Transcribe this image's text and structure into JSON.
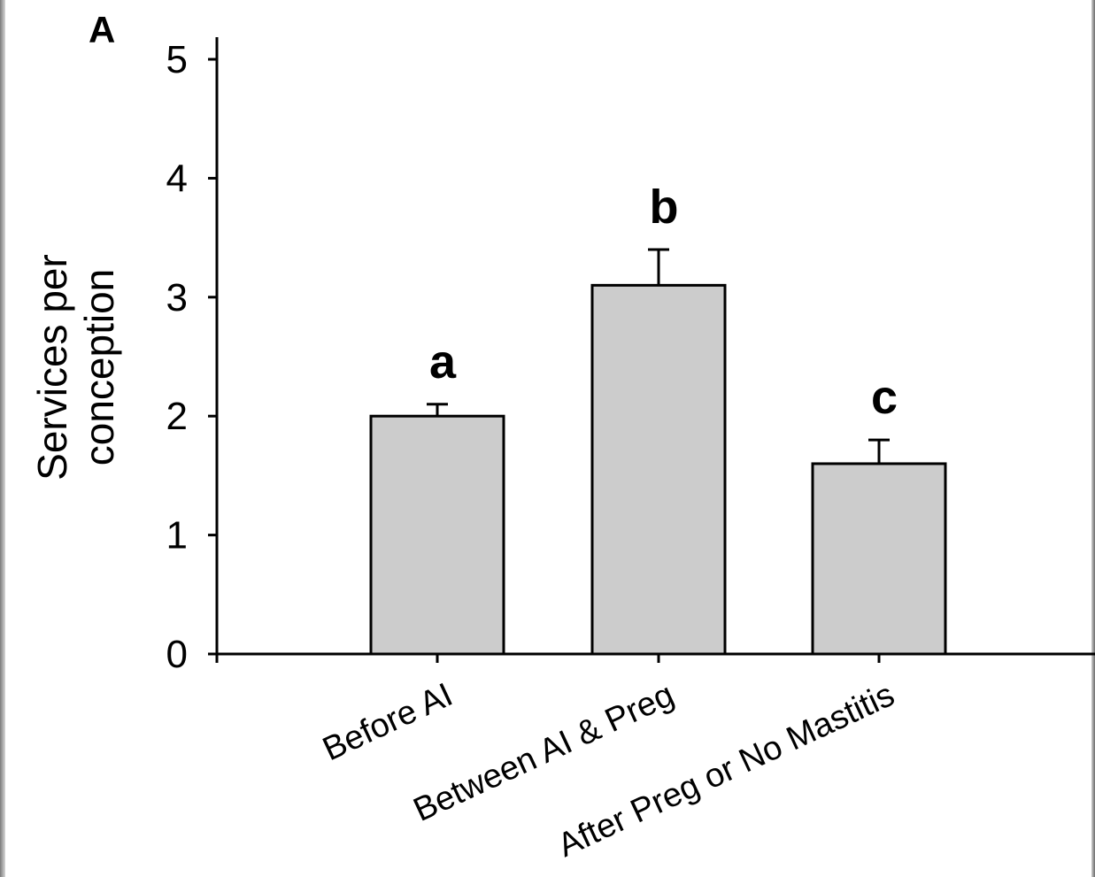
{
  "panel_label": "A",
  "chart_data": {
    "type": "bar",
    "title": "",
    "xlabel": "",
    "ylabel": [
      "Services per",
      "conception"
    ],
    "ylim": [
      0,
      5
    ],
    "yticks": [
      0,
      1,
      2,
      3,
      4,
      5
    ],
    "categories": [
      "Before AI",
      "Between AI & Preg",
      "After Preg or No Mastitis"
    ],
    "values": [
      2.0,
      3.1,
      1.6
    ],
    "errors": [
      0.1,
      0.3,
      0.2
    ],
    "significance_letters": [
      "a",
      "b",
      "c"
    ],
    "bar_color": "#cccccc",
    "grid": false,
    "legend": "none"
  }
}
